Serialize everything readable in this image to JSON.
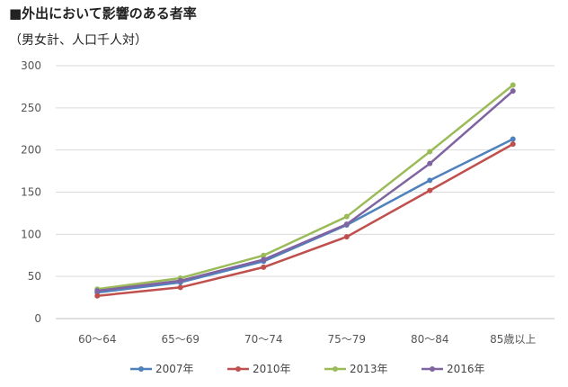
{
  "title": "■外出において影響のある者率",
  "subtitle": "（男女計、人口千人対）",
  "chart_data": {
    "type": "line",
    "title": "■外出において影響のある者率",
    "subtitle": "（男女計、人口千人対）",
    "xlabel": "",
    "ylabel": "",
    "categories": [
      "60～64",
      "65～69",
      "70～74",
      "75～79",
      "80～84",
      "85歳以上"
    ],
    "ylim": [
      0,
      300
    ],
    "yticks": [
      0,
      50,
      100,
      150,
      200,
      250,
      300
    ],
    "grid": true,
    "legend_position": "bottom",
    "series": [
      {
        "name": "2007年",
        "color": "#4f81bd",
        "values": [
          31,
          43,
          68,
          111,
          164,
          213
        ]
      },
      {
        "name": "2010年",
        "color": "#c0504d",
        "values": [
          27,
          37,
          61,
          97,
          152,
          207
        ]
      },
      {
        "name": "2013年",
        "color": "#9bbb59",
        "values": [
          35,
          48,
          75,
          121,
          198,
          277
        ]
      },
      {
        "name": "2016年",
        "color": "#8064a2",
        "values": [
          33,
          45,
          70,
          112,
          184,
          270
        ]
      }
    ]
  }
}
